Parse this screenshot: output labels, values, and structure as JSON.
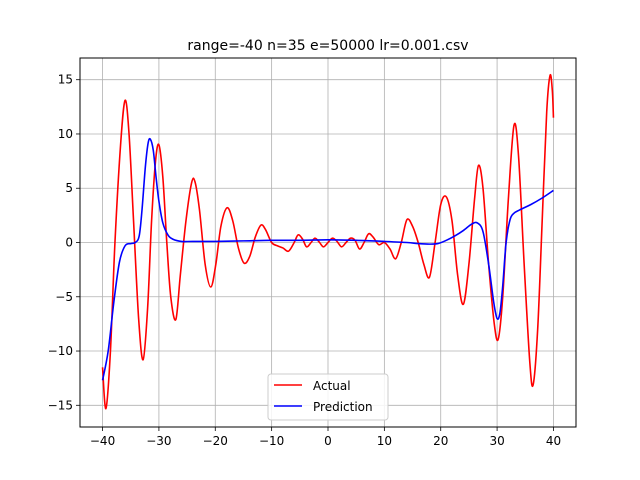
{
  "chart_data": {
    "type": "line",
    "title": "range=-40 n=35 e=50000 lr=0.001.csv",
    "xlabel": "",
    "ylabel": "",
    "xlim": [
      -44,
      44
    ],
    "ylim": [
      -17,
      17
    ],
    "xticks": [
      -40,
      -30,
      -20,
      -10,
      0,
      10,
      20,
      30,
      40
    ],
    "yticks": [
      -15,
      -10,
      -5,
      0,
      5,
      10,
      15
    ],
    "xtick_labels": [
      "−40",
      "−30",
      "−20",
      "−10",
      "0",
      "10",
      "20",
      "30",
      "40"
    ],
    "ytick_labels": [
      "−15",
      "−10",
      "−5",
      "0",
      "5",
      "10",
      "15"
    ],
    "grid": true,
    "legend_position": "lower center",
    "series": [
      {
        "name": "Actual",
        "color": "#ff0000",
        "points": [
          [
            -40,
            -11.5
          ],
          [
            -39.4,
            -15.3
          ],
          [
            -38.6,
            -10
          ],
          [
            -37.8,
            0
          ],
          [
            -36.8,
            9
          ],
          [
            -36,
            13.1
          ],
          [
            -35.3,
            10
          ],
          [
            -34.5,
            2
          ],
          [
            -33.6,
            -7
          ],
          [
            -32.8,
            -10.8
          ],
          [
            -32,
            -6
          ],
          [
            -31.3,
            2
          ],
          [
            -30.6,
            7.5
          ],
          [
            -30,
            9
          ],
          [
            -29.3,
            6
          ],
          [
            -28.6,
            0
          ],
          [
            -27.9,
            -5
          ],
          [
            -27,
            -7.1
          ],
          [
            -26.2,
            -3
          ],
          [
            -25.2,
            2
          ],
          [
            -24.2,
            5.5
          ],
          [
            -23.6,
            5.6
          ],
          [
            -22.8,
            3
          ],
          [
            -21.8,
            -2
          ],
          [
            -20.8,
            -4.1
          ],
          [
            -19.9,
            -2
          ],
          [
            -19,
            1.5
          ],
          [
            -17.9,
            3.2
          ],
          [
            -16.9,
            2
          ],
          [
            -15.9,
            -0.5
          ],
          [
            -14.9,
            -1.9
          ],
          [
            -13.9,
            -1.3
          ],
          [
            -12.9,
            0.5
          ],
          [
            -11.9,
            1.6
          ],
          [
            -11.1,
            1.2
          ],
          [
            -10,
            0
          ],
          [
            -9,
            -0.3
          ],
          [
            -8,
            -0.5
          ],
          [
            -7,
            -0.8
          ],
          [
            -6,
            0
          ],
          [
            -5.3,
            0.7
          ],
          [
            -4.5,
            0.3
          ],
          [
            -3.8,
            -0.4
          ],
          [
            -3,
            0
          ],
          [
            -2.3,
            0.4
          ],
          [
            -1.5,
            0
          ],
          [
            -0.8,
            -0.4
          ],
          [
            0,
            0
          ],
          [
            0.8,
            0.4
          ],
          [
            1.6,
            0.1
          ],
          [
            2.4,
            -0.4
          ],
          [
            3.2,
            0
          ],
          [
            4,
            0.4
          ],
          [
            4.8,
            0.2
          ],
          [
            5.6,
            -0.6
          ],
          [
            6.4,
            0
          ],
          [
            7.2,
            0.8
          ],
          [
            8,
            0.5
          ],
          [
            9,
            -0.2
          ],
          [
            10,
            0
          ],
          [
            11,
            -0.6
          ],
          [
            12,
            -1.5
          ],
          [
            13,
            0
          ],
          [
            14,
            2.1
          ],
          [
            15,
            1.5
          ],
          [
            16,
            0
          ],
          [
            17,
            -2
          ],
          [
            18,
            -3.2
          ],
          [
            19,
            0
          ],
          [
            20,
            3.5
          ],
          [
            21,
            4.2
          ],
          [
            22,
            2
          ],
          [
            23,
            -3
          ],
          [
            24,
            -5.7
          ],
          [
            25,
            -2
          ],
          [
            26,
            4
          ],
          [
            26.7,
            7.1
          ],
          [
            27.5,
            5
          ],
          [
            28.5,
            -2
          ],
          [
            29.5,
            -7.5
          ],
          [
            30.2,
            -8.9
          ],
          [
            31,
            -5
          ],
          [
            32,
            4
          ],
          [
            33,
            10.8
          ],
          [
            33.8,
            8
          ],
          [
            34.8,
            -2
          ],
          [
            35.8,
            -11
          ],
          [
            36.4,
            -13.1
          ],
          [
            37.2,
            -8
          ],
          [
            38,
            2
          ],
          [
            38.8,
            12
          ],
          [
            39.4,
            15.4
          ],
          [
            39.8,
            14
          ],
          [
            40,
            11.5
          ]
        ]
      },
      {
        "name": "Prediction",
        "color": "#0000ff",
        "points": [
          [
            -40,
            -12.7
          ],
          [
            -39,
            -10
          ],
          [
            -38,
            -5.5
          ],
          [
            -37,
            -1.8
          ],
          [
            -36,
            -0.3
          ],
          [
            -35,
            -0.1
          ],
          [
            -34.2,
            0
          ],
          [
            -33.5,
            0.6
          ],
          [
            -33,
            3
          ],
          [
            -32.4,
            7
          ],
          [
            -31.9,
            9.2
          ],
          [
            -31.5,
            9.5
          ],
          [
            -31,
            8.5
          ],
          [
            -30.5,
            6
          ],
          [
            -30,
            3.8
          ],
          [
            -29.3,
            1.8
          ],
          [
            -28.4,
            0.7
          ],
          [
            -27.5,
            0.3
          ],
          [
            -26,
            0.1
          ],
          [
            -24,
            0.1
          ],
          [
            -20,
            0.1
          ],
          [
            -15,
            0.15
          ],
          [
            -10,
            0.2
          ],
          [
            -5,
            0.2
          ],
          [
            0,
            0.25
          ],
          [
            5,
            0.2
          ],
          [
            10,
            0.1
          ],
          [
            14,
            0
          ],
          [
            16,
            -0.1
          ],
          [
            18,
            -0.15
          ],
          [
            19.5,
            -0.1
          ],
          [
            21,
            0.2
          ],
          [
            22.5,
            0.6
          ],
          [
            24,
            1.1
          ],
          [
            25.5,
            1.7
          ],
          [
            26.5,
            1.8
          ],
          [
            27.5,
            1
          ],
          [
            28.5,
            -2
          ],
          [
            29.4,
            -5.5
          ],
          [
            30,
            -7
          ],
          [
            30.5,
            -6.5
          ],
          [
            31,
            -4
          ],
          [
            31.6,
            0
          ],
          [
            32.3,
            2.1
          ],
          [
            33,
            2.7
          ],
          [
            34,
            3
          ],
          [
            36,
            3.5
          ],
          [
            38,
            4.1
          ],
          [
            40,
            4.8
          ]
        ]
      }
    ]
  }
}
